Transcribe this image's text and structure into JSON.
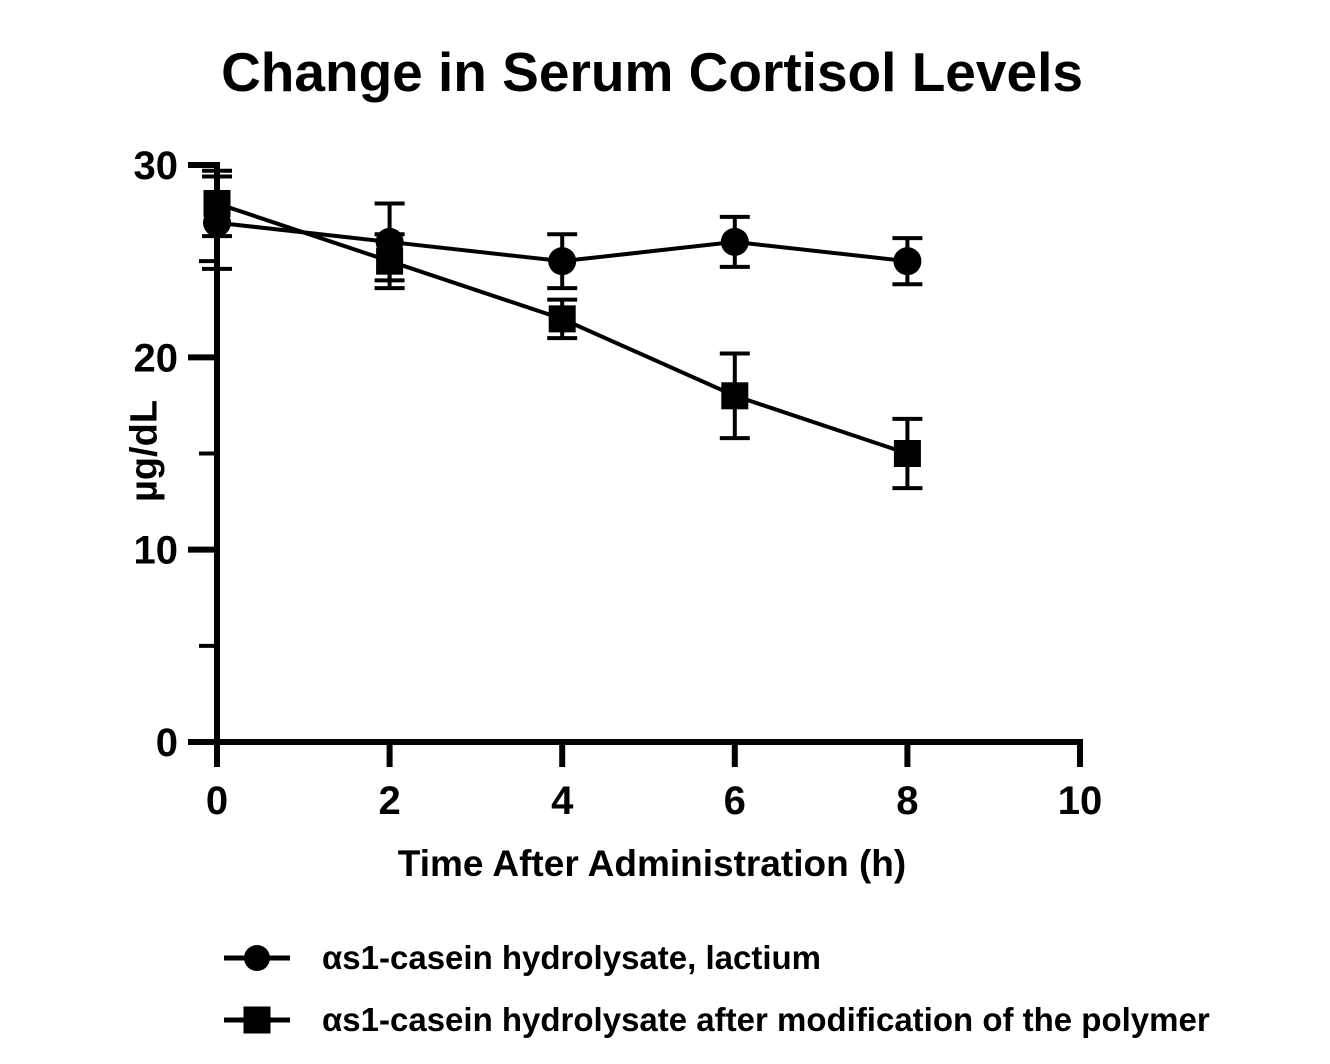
{
  "figure": {
    "background_color": "#ffffff",
    "foreground_color": "#000000"
  },
  "chart_data": {
    "type": "line",
    "title": "Change in Serum Cortisol Levels",
    "xlabel": "Time After Administration (h)",
    "ylabel": "µg/dL",
    "x": [
      0,
      2,
      4,
      6,
      8
    ],
    "series": [
      {
        "name": "αs1-casein hydrolysate, lactium",
        "marker": "circle",
        "values": [
          27,
          26,
          25,
          26,
          25
        ],
        "errors": [
          2.4,
          2.0,
          1.4,
          1.3,
          1.2
        ]
      },
      {
        "name": "αs1-casein hydrolysate after modification of the polymer",
        "marker": "square",
        "values": [
          28,
          25,
          22,
          18,
          15
        ],
        "errors": [
          1.7,
          1.4,
          1.0,
          2.2,
          1.8
        ]
      }
    ],
    "xlim": [
      0,
      10
    ],
    "ylim": [
      0,
      30
    ],
    "xticks": [
      0,
      2,
      4,
      6,
      8,
      10
    ],
    "yticks": [
      0,
      10,
      20,
      30
    ],
    "yticks_minor": [
      5,
      15,
      25
    ],
    "grid": false,
    "error_bars": true,
    "legend_position": "bottom-left",
    "line_color": "#000000",
    "marker_color": "#000000"
  }
}
